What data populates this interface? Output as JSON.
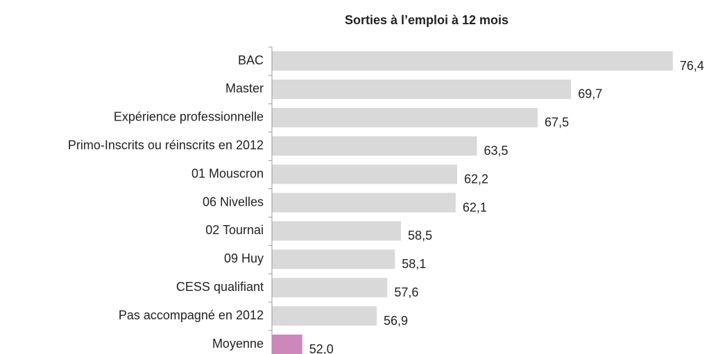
{
  "chart_data": {
    "type": "hbar",
    "title": "Sorties à l’emploi à 12 mois",
    "categories": [
      "BAC",
      "Master",
      "Expérience professionnelle",
      "Primo-Inscrits ou réinscrits en 2012",
      "01 Mouscron",
      "06 Nivelles",
      "02 Tournai",
      "09 Huy",
      "CESS qualifiant",
      "Pas accompagné en 2012",
      "Moyenne"
    ],
    "values": [
      76.4,
      69.7,
      67.5,
      63.5,
      62.2,
      62.1,
      58.5,
      58.1,
      57.6,
      56.9,
      52.0
    ],
    "value_labels": [
      "76,4",
      "69,7",
      "67,5",
      "63,5",
      "62,2",
      "62,1",
      "58,5",
      "58,1",
      "57,6",
      "56,9",
      "52,0"
    ],
    "colors": [
      "#d9d9d9",
      "#d9d9d9",
      "#d9d9d9",
      "#d9d9d9",
      "#d9d9d9",
      "#d9d9d9",
      "#d9d9d9",
      "#d9d9d9",
      "#d9d9d9",
      "#d9d9d9",
      "#cc88bb"
    ],
    "xlim": [
      50,
      77
    ]
  }
}
